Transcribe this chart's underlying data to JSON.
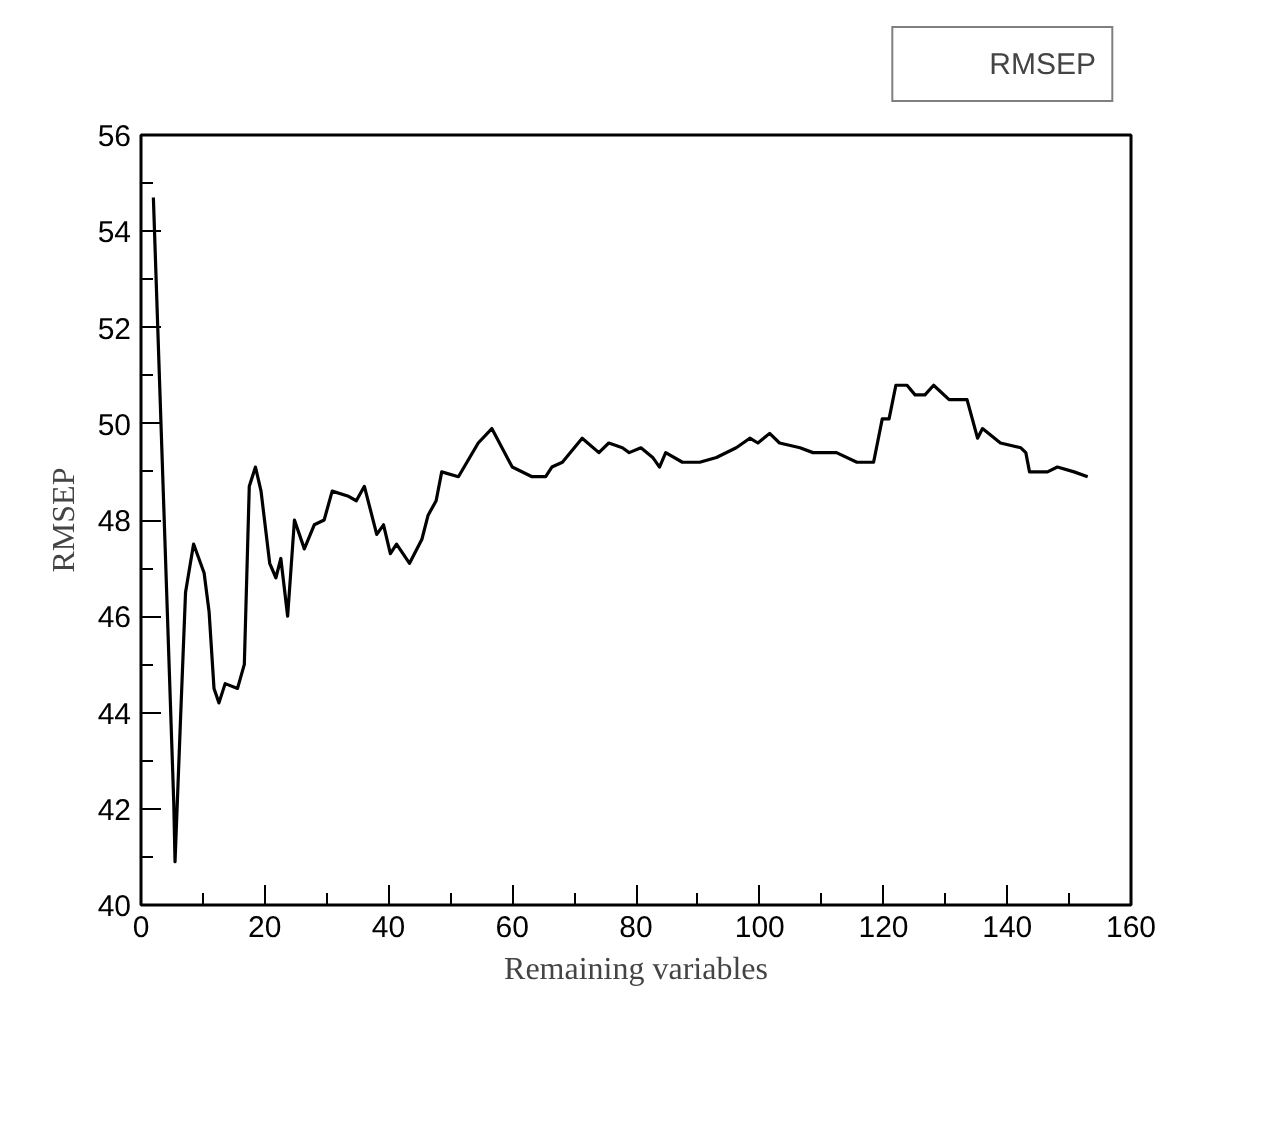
{
  "chart_data": {
    "type": "line",
    "xlabel": "Remaining variables",
    "ylabel": "RMSEP",
    "xlim": [
      0,
      160
    ],
    "ylim": [
      40,
      56
    ],
    "xticks": [
      0,
      20,
      40,
      60,
      80,
      100,
      120,
      140,
      160
    ],
    "yticks": [
      40,
      42,
      44,
      46,
      48,
      50,
      52,
      54,
      56
    ],
    "legend": "top right",
    "grid": false,
    "marker": "none",
    "line_style": "solid",
    "series": [
      {
        "name": "RMSEP",
        "color": "#000000",
        "x": [
          2,
          5.3,
          5.5,
          6.4,
          7.2,
          8.5,
          10.2,
          11,
          11.8,
          12.6,
          13.6,
          15.6,
          16.7,
          17.5,
          18.5,
          19.4,
          20.8,
          21.8,
          22.6,
          23.7,
          24.8,
          26.4,
          28,
          29.6,
          30.9,
          33.4,
          34.8,
          36.1,
          38.1,
          39.2,
          40.3,
          41.3,
          43.4,
          45.4,
          46.4,
          47.7,
          48.6,
          51.3,
          54.5,
          56.7,
          60,
          63.2,
          65.4,
          66.4,
          68.1,
          71.3,
          74,
          75.6,
          77.8,
          78.9,
          80.8,
          82.7,
          83.8,
          84.8,
          87.5,
          90.3,
          93,
          96.2,
          98.4,
          99.7,
          101.6,
          103.2,
          106.5,
          108.6,
          112.4,
          115.7,
          118.4,
          119.8,
          120.9,
          122,
          123.8,
          125.1,
          126.7,
          128.1,
          130.6,
          133.5,
          135.2,
          136,
          138.9,
          142.2,
          143,
          143.6,
          146.5,
          148.1,
          150.8,
          153
        ],
        "values": [
          54.7,
          42.1,
          40.9,
          43.9,
          46.5,
          47.5,
          46.9,
          46.1,
          44.5,
          44.2,
          44.6,
          44.5,
          45,
          48.7,
          49.1,
          48.6,
          47.1,
          46.8,
          47.2,
          46,
          48,
          47.4,
          47.9,
          48,
          48.6,
          48.5,
          48.4,
          48.7,
          47.7,
          47.9,
          47.3,
          47.5,
          47.1,
          47.6,
          48.1,
          48.4,
          49,
          48.9,
          49.6,
          49.9,
          49.1,
          48.9,
          48.9,
          49.1,
          49.2,
          49.7,
          49.4,
          49.6,
          49.5,
          49.4,
          49.5,
          49.3,
          49.1,
          49.4,
          49.2,
          49.2,
          49.3,
          49.5,
          49.7,
          49.6,
          49.8,
          49.6,
          49.5,
          49.4,
          49.4,
          49.2,
          49.2,
          50.1,
          50.1,
          50.8,
          50.8,
          50.6,
          50.6,
          50.8,
          50.5,
          50.5,
          49.7,
          49.9,
          49.6,
          49.5,
          49.4,
          49,
          49,
          49.1,
          49,
          48.9
        ]
      }
    ]
  }
}
